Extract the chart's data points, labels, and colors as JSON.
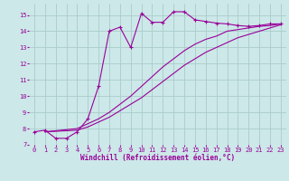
{
  "background_color": "#cce8e8",
  "grid_color": "#aacccc",
  "line_color": "#990099",
  "marker_style": "+",
  "marker_size": 3,
  "line_width": 0.8,
  "xlabel": "Windchill (Refroidissement éolien,°C)",
  "xlabel_fontsize": 5.5,
  "tick_fontsize": 5.0,
  "xlim": [
    -0.5,
    23.5
  ],
  "ylim": [
    7.0,
    15.7
  ],
  "yticks": [
    7,
    8,
    9,
    10,
    11,
    12,
    13,
    14,
    15
  ],
  "xticks": [
    0,
    1,
    2,
    3,
    4,
    5,
    6,
    7,
    8,
    9,
    10,
    11,
    12,
    13,
    14,
    15,
    16,
    17,
    18,
    19,
    20,
    21,
    22,
    23
  ],
  "series": [
    {
      "x": [
        0,
        1,
        2,
        3,
        4,
        5,
        6,
        7,
        8,
        9,
        10,
        11,
        12,
        13,
        14,
        15,
        16,
        17,
        18,
        19,
        20,
        21,
        22,
        23
      ],
      "y": [
        7.8,
        7.9,
        7.4,
        7.4,
        7.8,
        8.6,
        10.6,
        14.0,
        14.25,
        13.0,
        15.1,
        14.55,
        14.55,
        15.2,
        15.2,
        14.7,
        14.6,
        14.5,
        14.45,
        14.35,
        14.3,
        14.35,
        14.45,
        14.45
      ],
      "has_markers": true
    },
    {
      "x": [
        1,
        4,
        5,
        6,
        7,
        8,
        9,
        10,
        11,
        12,
        13,
        14,
        15,
        16,
        17,
        18,
        19,
        20,
        21,
        22,
        23
      ],
      "y": [
        7.8,
        7.9,
        8.1,
        8.4,
        8.7,
        9.1,
        9.5,
        9.9,
        10.4,
        10.9,
        11.4,
        11.9,
        12.3,
        12.7,
        13.0,
        13.3,
        13.6,
        13.8,
        14.0,
        14.2,
        14.4
      ],
      "has_markers": false
    },
    {
      "x": [
        1,
        4,
        5,
        6,
        7,
        8,
        9,
        10,
        11,
        12,
        13,
        14,
        15,
        16,
        17,
        18,
        19,
        20,
        21,
        22,
        23
      ],
      "y": [
        7.8,
        8.0,
        8.3,
        8.6,
        9.0,
        9.5,
        10.0,
        10.6,
        11.2,
        11.8,
        12.3,
        12.8,
        13.2,
        13.5,
        13.7,
        14.0,
        14.1,
        14.2,
        14.3,
        14.35,
        14.45
      ],
      "has_markers": false
    }
  ]
}
